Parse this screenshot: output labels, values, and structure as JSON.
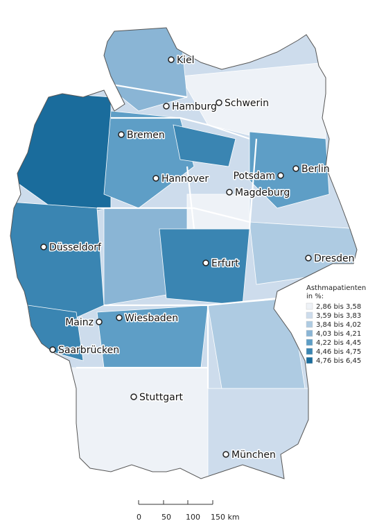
{
  "map": {
    "legend": {
      "title": [
        "Asthmapatienten",
        "in %:"
      ],
      "classes": [
        {
          "label": "2,86 bis 3,58",
          "color": "#eef2f7"
        },
        {
          "label": "3,59 bis 3,83",
          "color": "#cddcec"
        },
        {
          "label": "3,84 bis 4,02",
          "color": "#aecbe2"
        },
        {
          "label": "4,03 bis 4,21",
          "color": "#8ab5d5"
        },
        {
          "label": "4,22 bis 4,45",
          "color": "#5e9ec6"
        },
        {
          "label": "4,46 bis 4,75",
          "color": "#3a85b2"
        },
        {
          "label": "4,76 bis 6,45",
          "color": "#1a6c9c"
        }
      ]
    },
    "cities": [
      "Kiel",
      "Hamburg",
      "Schwerin",
      "Bremen",
      "Hannover",
      "Potsdam",
      "Berlin",
      "Magdeburg",
      "Düsseldorf",
      "Erfurt",
      "Dresden",
      "Mainz",
      "Wiesbaden",
      "Saarbrücken",
      "Stuttgart",
      "München"
    ],
    "scale_bar": [
      "0",
      "50",
      "100",
      "150 km"
    ]
  }
}
